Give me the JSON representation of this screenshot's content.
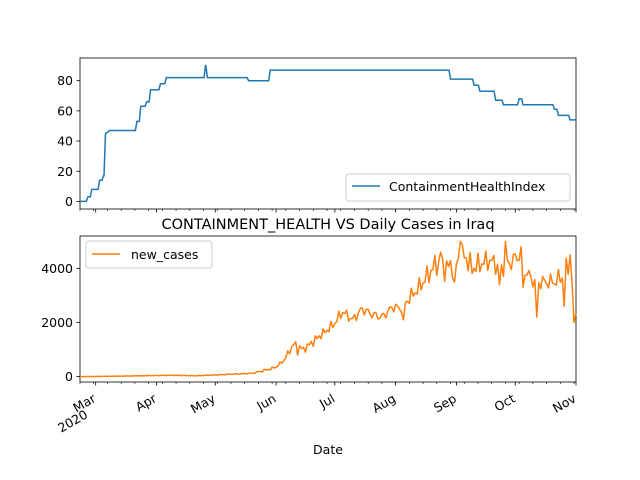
{
  "title": "CONTAINMENT_HEALTH VS Daily Cases in Iraq",
  "xlabel": "Date",
  "x_start": "2020-02-22",
  "x_end": "2020-11-01",
  "month_ticks": [
    {
      "date": "2020-03-01",
      "label": "Mar",
      "sublabel": "2020"
    },
    {
      "date": "2020-04-01",
      "label": "Apr",
      "sublabel": ""
    },
    {
      "date": "2020-05-01",
      "label": "May",
      "sublabel": ""
    },
    {
      "date": "2020-06-01",
      "label": "Jun",
      "sublabel": ""
    },
    {
      "date": "2020-07-01",
      "label": "Jul",
      "sublabel": ""
    },
    {
      "date": "2020-08-01",
      "label": "Aug",
      "sublabel": ""
    },
    {
      "date": "2020-09-01",
      "label": "Sep",
      "sublabel": ""
    },
    {
      "date": "2020-10-01",
      "label": "Oct",
      "sublabel": ""
    },
    {
      "date": "2020-11-01",
      "label": "Nov",
      "sublabel": ""
    }
  ],
  "chart_data": [
    {
      "type": "line",
      "series_name": "ContainmentHealthIndex",
      "color": "#1f77b4",
      "legend_position": "lower-right",
      "ylim": [
        -5,
        95
      ],
      "yticks": [
        0,
        20,
        40,
        60,
        80
      ],
      "step_points": [
        [
          "2020-02-22",
          0
        ],
        [
          "2020-02-26",
          3
        ],
        [
          "2020-02-28",
          8
        ],
        [
          "2020-03-03",
          14
        ],
        [
          "2020-03-05",
          17
        ],
        [
          "2020-03-06",
          45
        ],
        [
          "2020-03-07",
          46
        ],
        [
          "2020-03-08",
          47
        ],
        [
          "2020-03-22",
          53
        ],
        [
          "2020-03-24",
          63
        ],
        [
          "2020-03-27",
          66
        ],
        [
          "2020-03-29",
          74
        ],
        [
          "2020-04-02",
          74
        ],
        [
          "2020-04-03",
          78
        ],
        [
          "2020-04-06",
          82
        ],
        [
          "2020-04-26",
          90
        ],
        [
          "2020-04-27",
          82
        ],
        [
          "2020-05-18",
          80
        ],
        [
          "2020-05-29",
          87
        ],
        [
          "2020-08-29",
          81
        ],
        [
          "2020-09-10",
          77
        ],
        [
          "2020-09-13",
          73
        ],
        [
          "2020-09-21",
          67
        ],
        [
          "2020-09-25",
          64
        ],
        [
          "2020-10-03",
          68
        ],
        [
          "2020-10-05",
          64
        ],
        [
          "2020-10-21",
          61
        ],
        [
          "2020-10-23",
          57
        ],
        [
          "2020-10-29",
          54
        ],
        [
          "2020-11-01",
          54
        ]
      ]
    },
    {
      "type": "line",
      "series_name": "new_cases",
      "color": "#ff7f0e",
      "legend_position": "upper-left",
      "ylim": [
        -200,
        5200
      ],
      "yticks": [
        0,
        2000,
        4000
      ],
      "anchor_points": [
        [
          "2020-02-22",
          0
        ],
        [
          "2020-03-01",
          5
        ],
        [
          "2020-03-15",
          20
        ],
        [
          "2020-04-01",
          40
        ],
        [
          "2020-04-10",
          50
        ],
        [
          "2020-04-20",
          30
        ],
        [
          "2020-05-01",
          60
        ],
        [
          "2020-05-10",
          90
        ],
        [
          "2020-05-20",
          120
        ],
        [
          "2020-05-27",
          250
        ],
        [
          "2020-06-01",
          350
        ],
        [
          "2020-06-05",
          600
        ],
        [
          "2020-06-10",
          1200
        ],
        [
          "2020-06-15",
          1000
        ],
        [
          "2020-06-20",
          1300
        ],
        [
          "2020-06-25",
          1600
        ],
        [
          "2020-06-30",
          1900
        ],
        [
          "2020-07-05",
          2400
        ],
        [
          "2020-07-10",
          2100
        ],
        [
          "2020-07-15",
          2500
        ],
        [
          "2020-07-20",
          2300
        ],
        [
          "2020-07-25",
          2200
        ],
        [
          "2020-07-31",
          2600
        ],
        [
          "2020-08-03",
          2500
        ],
        [
          "2020-08-08",
          2900
        ],
        [
          "2020-08-13",
          3300
        ],
        [
          "2020-08-18",
          3800
        ],
        [
          "2020-08-22",
          4200
        ],
        [
          "2020-08-26",
          4000
        ],
        [
          "2020-09-01",
          4200
        ],
        [
          "2020-09-05",
          4500
        ],
        [
          "2020-09-09",
          4000
        ],
        [
          "2020-09-14",
          4200
        ],
        [
          "2020-09-18",
          4300
        ],
        [
          "2020-09-24",
          4000
        ],
        [
          "2020-09-28",
          4200
        ],
        [
          "2020-10-03",
          4500
        ],
        [
          "2020-10-07",
          3800
        ],
        [
          "2020-10-11",
          3500
        ],
        [
          "2020-10-16",
          3500
        ],
        [
          "2020-10-21",
          3500
        ],
        [
          "2020-10-25",
          3700
        ],
        [
          "2020-10-28",
          4100
        ],
        [
          "2020-10-30",
          3500
        ],
        [
          "2020-11-01",
          2600
        ]
      ],
      "peaks": [
        [
          "2020-09-03",
          5000
        ],
        [
          "2020-09-26",
          5000
        ],
        [
          "2020-10-12",
          2200
        ],
        [
          "2020-10-26",
          2600
        ],
        [
          "2020-10-29",
          4500
        ],
        [
          "2020-10-31",
          2000
        ],
        [
          "2020-08-24",
          4600
        ],
        [
          "2020-08-31",
          3500
        ],
        [
          "2020-08-05",
          2100
        ],
        [
          "2020-06-12",
          800
        ],
        [
          "2020-09-23",
          3400
        ],
        [
          "2020-10-04",
          4800
        ],
        [
          "2020-10-05",
          3300
        ]
      ]
    }
  ]
}
